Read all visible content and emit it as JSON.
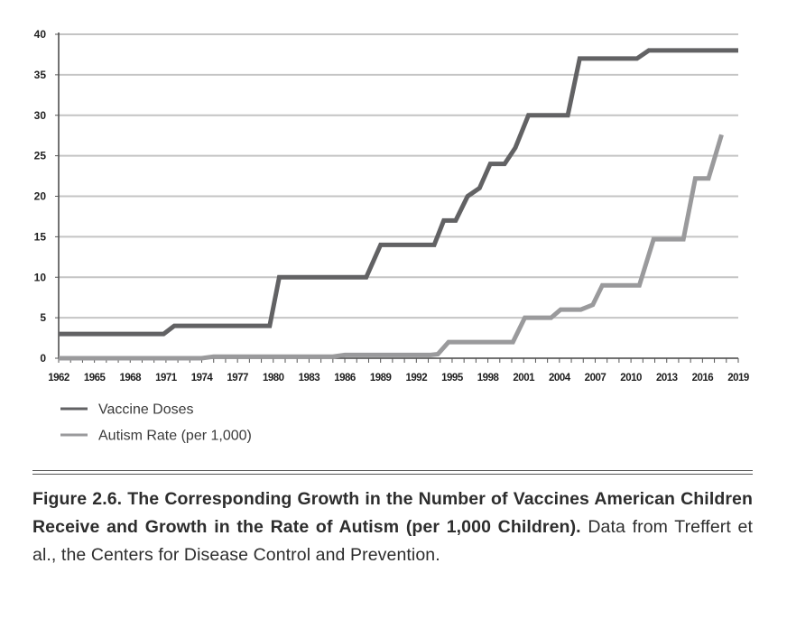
{
  "chart_data": {
    "type": "line",
    "ylim": [
      0,
      40
    ],
    "yticks": [
      "0",
      "5",
      "10",
      "15",
      "20",
      "25",
      "30",
      "35",
      "40"
    ],
    "xlim": [
      1962,
      2019
    ],
    "xticks": [
      "1962",
      "1965",
      "1968",
      "1971",
      "1974",
      "1977",
      "1980",
      "1983",
      "1986",
      "1989",
      "1992",
      "1995",
      "1998",
      "2001",
      "2004",
      "2007",
      "2010",
      "2013",
      "2016",
      "2019"
    ],
    "grid": true,
    "legend_position": "bottom-left",
    "series": [
      {
        "name": "Vaccine Doses",
        "color": "#626264",
        "points": [
          [
            1962,
            3
          ],
          [
            1970.8,
            3
          ],
          [
            1971.7,
            4
          ],
          [
            1979.7,
            4
          ],
          [
            1980.5,
            10
          ],
          [
            1987.8,
            10
          ],
          [
            1989,
            14
          ],
          [
            1993.5,
            14
          ],
          [
            1994.3,
            17
          ],
          [
            1995.3,
            17
          ],
          [
            1996.3,
            20
          ],
          [
            1997.3,
            21
          ],
          [
            1998.2,
            24
          ],
          [
            1999.4,
            24
          ],
          [
            2000.3,
            26
          ],
          [
            2001.4,
            30
          ],
          [
            2004.7,
            30
          ],
          [
            2005.7,
            37
          ],
          [
            2010.5,
            37
          ],
          [
            2011.5,
            38
          ],
          [
            2019,
            38
          ]
        ]
      },
      {
        "name": "Autism Rate (per 1,000)",
        "color": "#9a9a9c",
        "points": [
          [
            1962,
            0
          ],
          [
            1974,
            0
          ],
          [
            1975,
            0.2
          ],
          [
            1985,
            0.2
          ],
          [
            1986,
            0.4
          ],
          [
            1993.2,
            0.4
          ],
          [
            1993.8,
            0.5
          ],
          [
            1994.7,
            2
          ],
          [
            2000.1,
            2
          ],
          [
            2001.1,
            5
          ],
          [
            2003.3,
            5
          ],
          [
            2004.1,
            6
          ],
          [
            2005.8,
            6
          ],
          [
            2006.8,
            6.6
          ],
          [
            2007.6,
            9
          ],
          [
            2010.7,
            9
          ],
          [
            2011.9,
            14.7
          ],
          [
            2014.4,
            14.7
          ],
          [
            2015.4,
            22.2
          ],
          [
            2016.5,
            22.2
          ],
          [
            2017.6,
            27.6
          ]
        ]
      }
    ]
  },
  "caption": {
    "bold": "Figure 2.6. The Corresponding Growth in the Number of Vaccines American Children Receive and Growth in the Rate of Autism (per 1,000 Children).",
    "text": " Data from Treffert et al., the Centers for Disease Control and Prevention."
  }
}
